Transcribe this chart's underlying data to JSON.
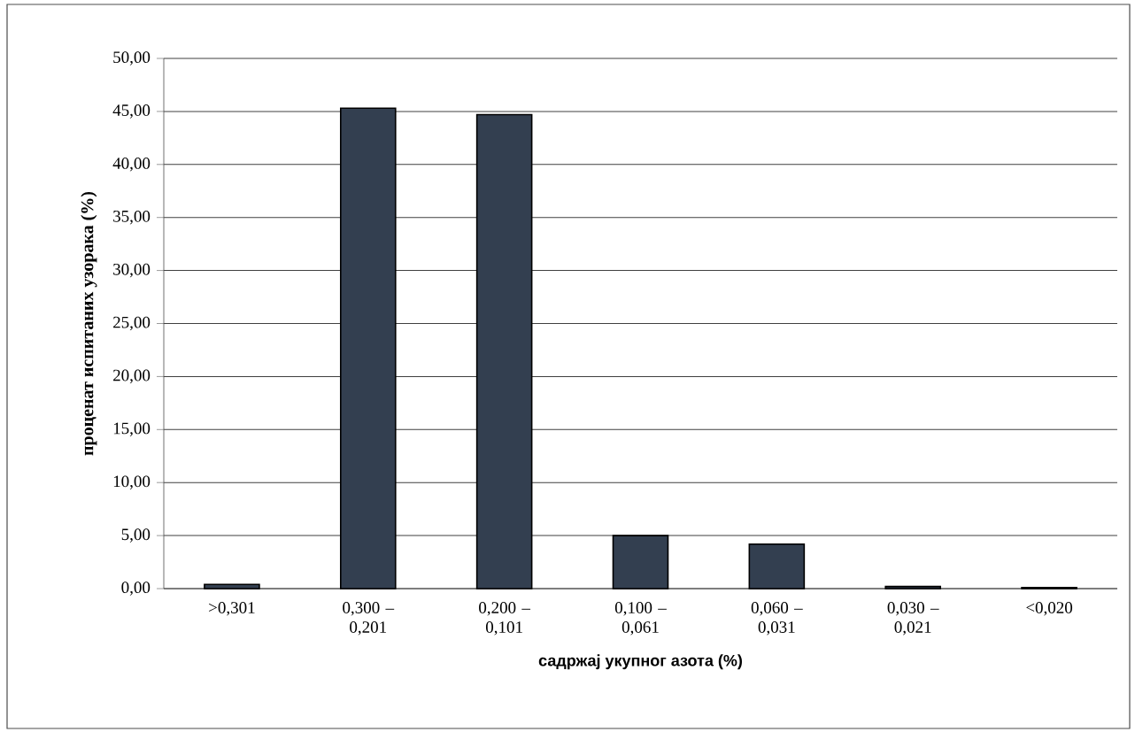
{
  "chart_data": {
    "type": "bar",
    "categories": [
      ">0,301",
      "0,300 – 0,201",
      "0,200 – 0,101",
      "0,100 – 0,061",
      "0,060 – 0,031",
      "0,030 – 0,021",
      "<0,020"
    ],
    "values": [
      0.4,
      45.3,
      44.7,
      5.0,
      4.2,
      0.2,
      0.1
    ],
    "color": "#333f50",
    "xlabel": "садржај укупног азота (%)",
    "ylabel": "проценат испитаних узорака (%)",
    "ylim": [
      0,
      50
    ],
    "yticks": [
      {
        "value": 0,
        "label": "0,00"
      },
      {
        "value": 5,
        "label": "5,00"
      },
      {
        "value": 10,
        "label": "10,00"
      },
      {
        "value": 15,
        "label": "15,00"
      },
      {
        "value": 20,
        "label": "20,00"
      },
      {
        "value": 25,
        "label": "25,00"
      },
      {
        "value": 30,
        "label": "30,00"
      },
      {
        "value": 35,
        "label": "35,00"
      },
      {
        "value": 40,
        "label": "40,00"
      },
      {
        "value": 45,
        "label": "45,00"
      },
      {
        "value": 50,
        "label": "50,00"
      }
    ],
    "grid": "y"
  }
}
